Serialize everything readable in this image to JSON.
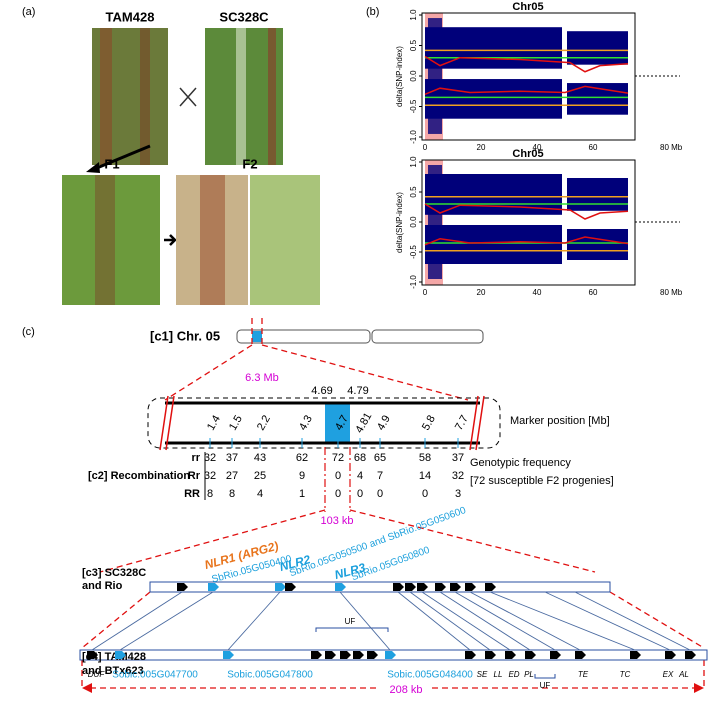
{
  "panel_a": {
    "label": "(a)",
    "parent_1": "TAM428",
    "parent_2": "SC328C",
    "f1": "F1",
    "f2": "F2"
  },
  "panel_b": {
    "label": "(b)",
    "plots": [
      {
        "title": "Chr05",
        "y_label": "delta(SNP-index)",
        "y_ticks": [
          "1.0",
          "0.5",
          "0.0",
          "-0.5",
          "-1.0"
        ],
        "x_ticks": [
          "0",
          "20",
          "40",
          "60",
          "80 Mb"
        ]
      },
      {
        "title": "Chr05",
        "y_label": "delta(SNP-index)",
        "y_ticks": [
          "1.0",
          "0.5",
          "0.0",
          "-0.5",
          "-1.0"
        ],
        "x_ticks": [
          "0",
          "20",
          "40",
          "60",
          "80 Mb"
        ]
      }
    ]
  },
  "panel_c": {
    "label": "(c)",
    "c1": {
      "label": "[c1] Chr. 05",
      "span": "6.3 Mb"
    },
    "c2": {
      "bounds": [
        "4.69",
        "4.79"
      ],
      "markers": [
        "1.4",
        "1.5",
        "2.2",
        "4.3",
        "4.7",
        "4.81",
        "4.9",
        "5.8",
        "7.7"
      ],
      "marker_caption": "Marker position [Mb]",
      "label": "[c2] Recombination",
      "genotypes": [
        {
          "name": "rr",
          "counts": [
            32,
            37,
            43,
            62,
            72,
            68,
            65,
            58,
            37
          ]
        },
        {
          "name": "Rr",
          "counts": [
            32,
            27,
            25,
            9,
            0,
            4,
            7,
            14,
            32
          ]
        },
        {
          "name": "RR",
          "counts": [
            8,
            8,
            4,
            1,
            0,
            0,
            0,
            0,
            3
          ]
        }
      ],
      "note": [
        "Genotypic frequency",
        "[72 susceptible F2 progenies]"
      ],
      "span": "103 kb"
    },
    "c3": {
      "label": [
        "[c3] SC328C",
        "and Rio"
      ],
      "genes": [
        {
          "name": "NLR1 (ARG2)",
          "id": "SbRio.05G050400"
        },
        {
          "name": "NLR2",
          "id": "SbRio.05G050500 and SbRio.05G050600"
        },
        {
          "name": "NLR3",
          "id": "SbRio.05G050800"
        }
      ]
    },
    "c4": {
      "label": [
        "[c4] TAM428",
        "and BTx623"
      ],
      "genes": [
        "DUF",
        "Sobic.005G047700",
        "Sobic.005G047800",
        "Sobic.005G048400",
        "SE",
        "LL",
        "ED",
        "PL",
        "TE",
        "TC",
        "EX",
        "AL"
      ],
      "clusters": [
        "UF",
        "UF"
      ],
      "span": "208 kb"
    }
  }
}
